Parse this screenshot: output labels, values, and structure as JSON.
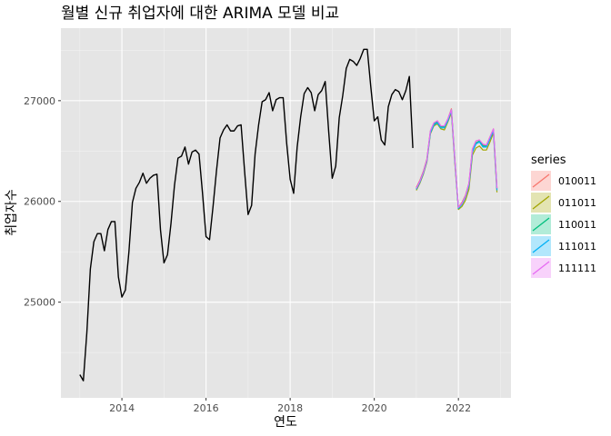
{
  "chart_data": {
    "type": "line",
    "title": "월별 신규 취업자에 대한 ARIMA 모델 비교",
    "xlabel": "연도",
    "ylabel": "취업자수",
    "xlim": [
      2012.55,
      2023.25
    ],
    "ylim": [
      24050,
      27720
    ],
    "x_ticks": [
      2014,
      2016,
      2018,
      2020,
      2022
    ],
    "y_ticks": [
      25000,
      26000,
      27000
    ],
    "grid": true,
    "legend_position": "right",
    "legend_title": "series",
    "background": "#e5e5e5",
    "observed": {
      "start": 2013.0,
      "step_months": 1,
      "color": "#000000",
      "values": [
        24280,
        24220,
        24700,
        25330,
        25600,
        25680,
        25680,
        25510,
        25720,
        25800,
        25800,
        25250,
        25050,
        25120,
        25500,
        25990,
        26130,
        26190,
        26280,
        26180,
        26230,
        26260,
        26270,
        25720,
        25390,
        25470,
        25780,
        26160,
        26430,
        26450,
        26540,
        26370,
        26490,
        26510,
        26470,
        26080,
        25650,
        25620,
        25950,
        26310,
        26630,
        26710,
        26760,
        26700,
        26700,
        26750,
        26760,
        26300,
        25870,
        25960,
        26470,
        26760,
        26990,
        27010,
        27080,
        26900,
        27010,
        27030,
        27030,
        26580,
        26220,
        26080,
        26540,
        26840,
        27070,
        27130,
        27080,
        26900,
        27060,
        27100,
        27190,
        26690,
        26230,
        26350,
        26830,
        27050,
        27320,
        27410,
        27390,
        27350,
        27420,
        27510,
        27510,
        27140,
        26800,
        26840,
        26610,
        26560,
        26940,
        27060,
        27110,
        27090,
        27010,
        27100,
        27240,
        26530
      ]
    },
    "forecast": {
      "start": 2021.0,
      "step_months": 1,
      "series": [
        {
          "name": "010011",
          "color": "#F8766D",
          "values": [
            26140,
            26210,
            26300,
            26420,
            26700,
            26780,
            26800,
            26750,
            26750,
            26820,
            26920,
            26410,
            25940,
            25990,
            26060,
            26180,
            26520,
            26600,
            26610,
            26560,
            26560,
            26640,
            26720,
            26130
          ]
        },
        {
          "name": "011011",
          "color": "#A3A500",
          "values": [
            26110,
            26180,
            26270,
            26390,
            26670,
            26750,
            26770,
            26720,
            26710,
            26790,
            26880,
            26370,
            25920,
            25950,
            26010,
            26120,
            26460,
            26530,
            26550,
            26510,
            26510,
            26590,
            26680,
            26090
          ]
        },
        {
          "name": "110011",
          "color": "#00BF7D",
          "values": [
            26130,
            26200,
            26290,
            26410,
            26690,
            26770,
            26790,
            26740,
            26740,
            26810,
            26910,
            26400,
            25930,
            25980,
            26050,
            26170,
            26500,
            26580,
            26600,
            26550,
            26550,
            26630,
            26710,
            26120
          ]
        },
        {
          "name": "111011",
          "color": "#00B0F6",
          "values": [
            26120,
            26190,
            26280,
            26400,
            26680,
            26760,
            26780,
            26730,
            26730,
            26800,
            26900,
            26390,
            25930,
            25970,
            26040,
            26160,
            26490,
            26570,
            26590,
            26540,
            26540,
            26620,
            26700,
            26110
          ]
        },
        {
          "name": "111111",
          "color": "#E76BF3",
          "values": [
            26130,
            26200,
            26290,
            26410,
            26700,
            26780,
            26800,
            26750,
            26750,
            26820,
            26910,
            26400,
            25940,
            25980,
            26050,
            26180,
            26520,
            26600,
            26610,
            26570,
            26560,
            26640,
            26720,
            26130
          ]
        }
      ]
    }
  }
}
